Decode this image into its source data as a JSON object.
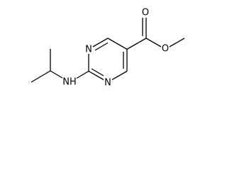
{
  "atoms": [
    {
      "label": "N"
    },
    {
      "label": "N"
    },
    {
      "label": "NH"
    },
    {
      "label": "O"
    },
    {
      "label": "O"
    }
  ]
}
